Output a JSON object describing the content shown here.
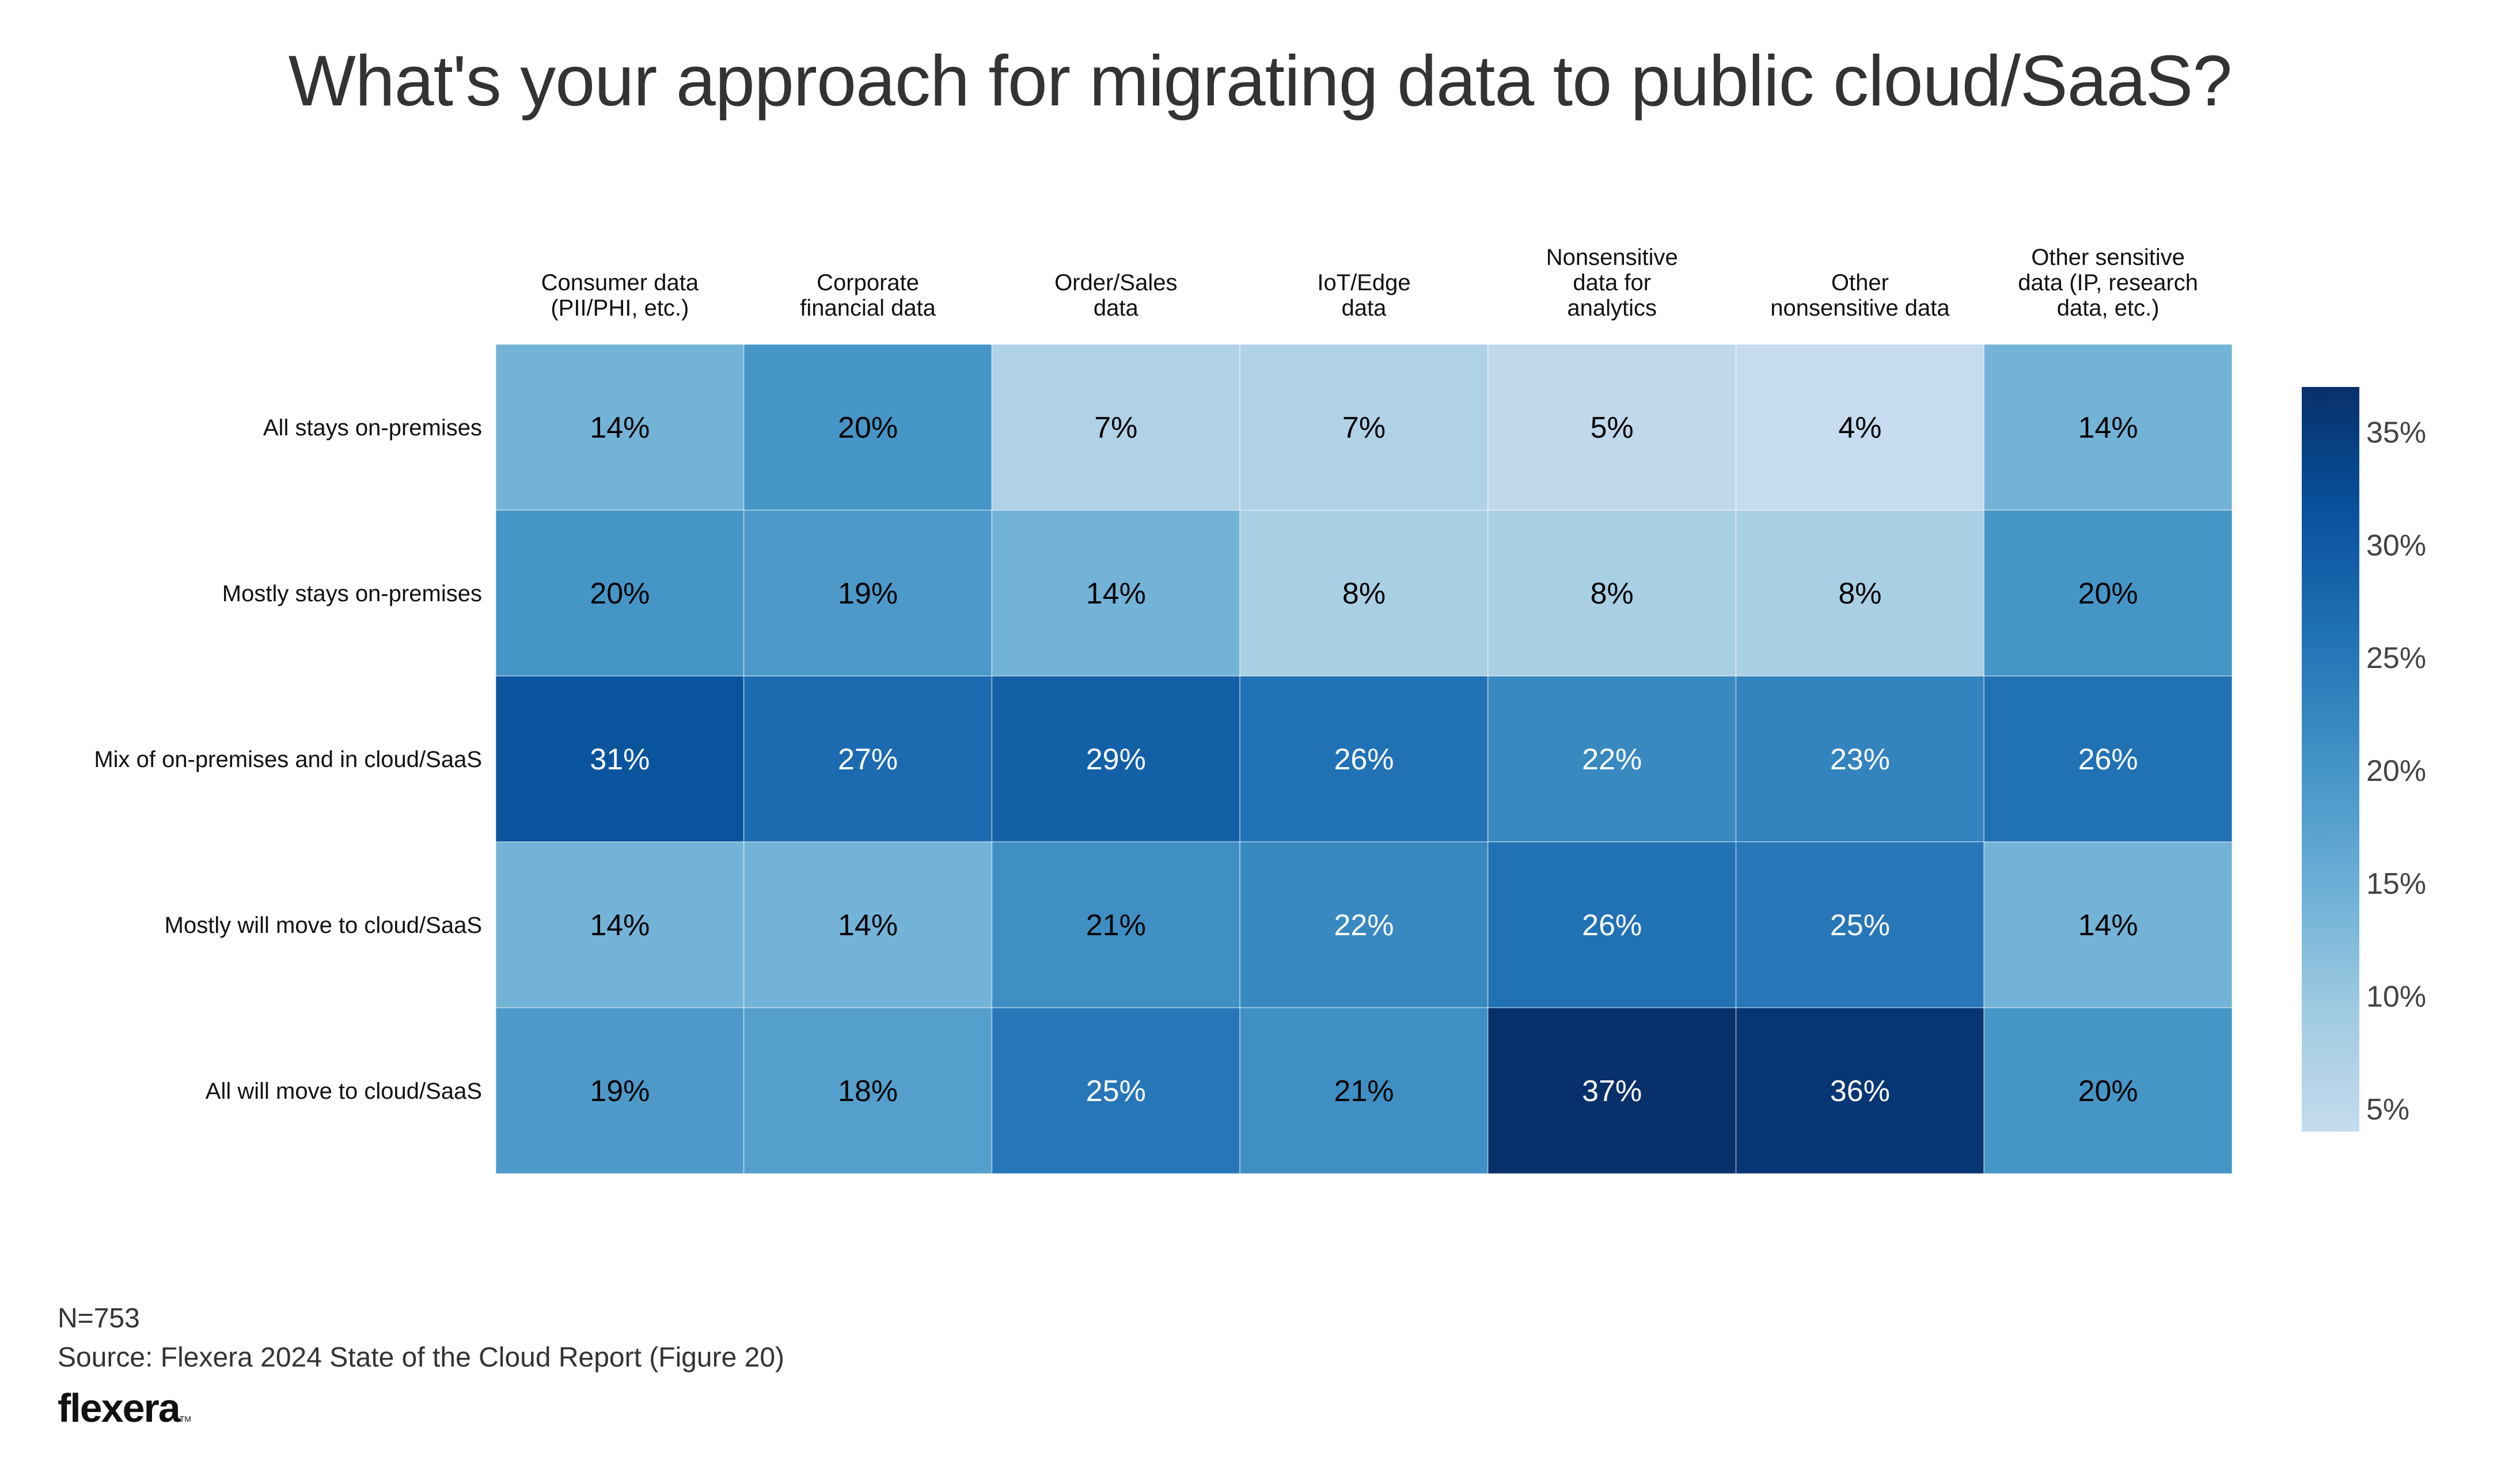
{
  "title": "What's your approach for migrating data to public cloud/SaaS?",
  "footer": {
    "n_label": "N=753",
    "source": "Source: Flexera 2024 State of the Cloud Report (Figure 20)",
    "logo_text": "flexera",
    "logo_mark": "TM"
  },
  "chart_data": {
    "type": "heatmap",
    "title": "What's your approach for migrating data to public cloud/SaaS?",
    "xlabel": "",
    "ylabel": "",
    "columns": [
      [
        "Consumer data",
        "(PII/PHI, etc.)"
      ],
      [
        "Corporate",
        "financial data"
      ],
      [
        "Order/Sales",
        "data"
      ],
      [
        "IoT/Edge",
        "data"
      ],
      [
        "Nonsensitive",
        "data for",
        "analytics"
      ],
      [
        "Other",
        "nonsensitive data"
      ],
      [
        "Other sensitive",
        "data (IP, research",
        "data, etc.)"
      ]
    ],
    "rows": [
      "All stays on-premises",
      "Mostly stays on-premises",
      "Mix of on-premises and in cloud/SaaS",
      "Mostly will move to cloud/SaaS",
      "All will move to cloud/SaaS"
    ],
    "values": [
      [
        14,
        20,
        7,
        7,
        5,
        4,
        14
      ],
      [
        20,
        19,
        14,
        8,
        8,
        8,
        20
      ],
      [
        31,
        27,
        29,
        26,
        22,
        23,
        26
      ],
      [
        14,
        14,
        21,
        22,
        26,
        25,
        14
      ],
      [
        19,
        18,
        25,
        21,
        37,
        36,
        20
      ]
    ],
    "value_suffix": "%",
    "colorscale": {
      "name": "Blues",
      "range": [
        4,
        37
      ],
      "stops": [
        "#c6dbef",
        "#9ecae1",
        "#6baed6",
        "#4292c6",
        "#2171b5",
        "#08519c",
        "#08306b"
      ],
      "ticks": [
        5,
        10,
        15,
        20,
        25,
        30,
        35
      ],
      "tick_labels": [
        "5%",
        "10%",
        "15%",
        "20%",
        "25%",
        "30%",
        "35%"
      ],
      "placement": "right"
    },
    "text_color_dark": "#000000",
    "text_color_light": "#ffffff",
    "light_text_threshold": 22
  }
}
